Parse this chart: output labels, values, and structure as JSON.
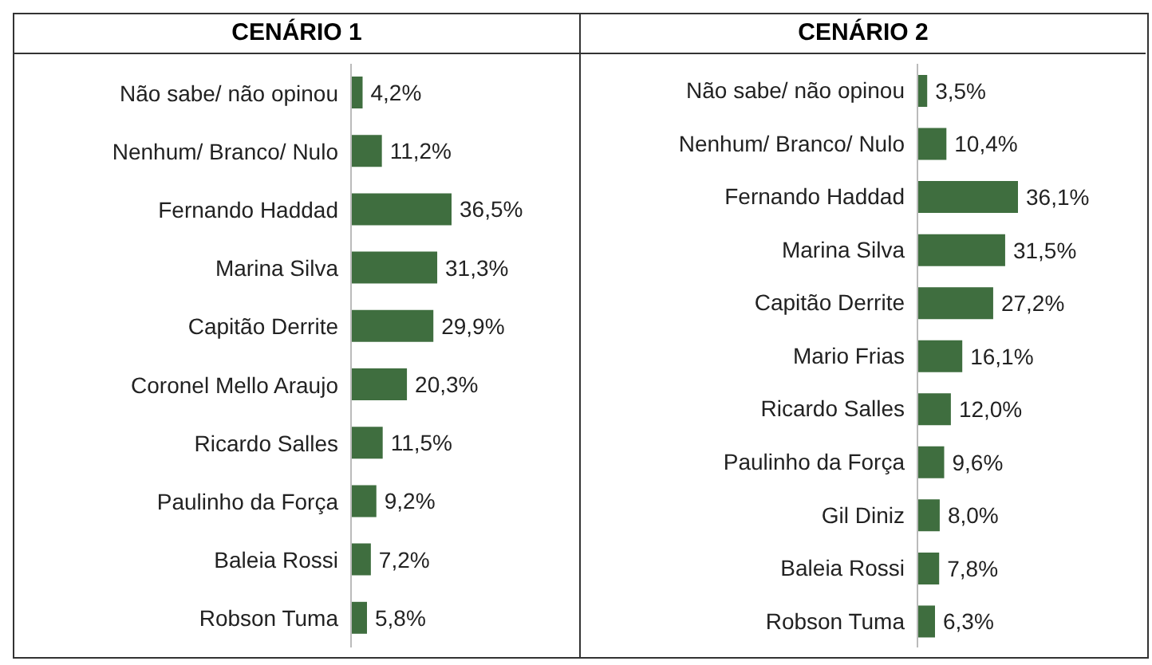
{
  "chart_data": [
    {
      "type": "bar",
      "orientation": "horizontal",
      "title": "CENÁRIO 1",
      "categories": [
        "Não sabe/ não opinou",
        "Nenhum/ Branco/ Nulo",
        "Fernando Haddad",
        "Marina Silva",
        "Capitão Derrite",
        "Coronel Mello Araujo",
        "Ricardo Salles",
        "Paulinho da Força",
        "Baleia Rossi",
        "Robson Tuma"
      ],
      "values": [
        4.2,
        11.2,
        36.5,
        31.3,
        29.9,
        20.3,
        11.5,
        9.2,
        7.2,
        5.8
      ],
      "value_labels": [
        "4,2%",
        "11,2%",
        "36,5%",
        "31,3%",
        "29,9%",
        "20,3%",
        "11,5%",
        "9,2%",
        "7,2%",
        "5,8%"
      ],
      "color": "#3f6e3f",
      "tick_labels": "y"
    },
    {
      "type": "bar",
      "orientation": "horizontal",
      "title": "CENÁRIO 2",
      "categories": [
        "Não sabe/ não opinou",
        "Nenhum/ Branco/ Nulo",
        "Fernando Haddad",
        "Marina Silva",
        "Capitão Derrite",
        "Mario Frias",
        "Ricardo Salles",
        "Paulinho da Força",
        "Gil Diniz",
        "Baleia Rossi",
        "Robson Tuma"
      ],
      "values": [
        3.5,
        10.4,
        36.1,
        31.5,
        27.2,
        16.1,
        12.0,
        9.6,
        8.0,
        7.8,
        6.3
      ],
      "value_labels": [
        "3,5%",
        "10,4%",
        "36,1%",
        "31,5%",
        "27,2%",
        "16,1%",
        "12,0%",
        "9,6%",
        "8,0%",
        "7,8%",
        "6,3%"
      ],
      "color": "#3f6e3f",
      "tick_labels": "y"
    }
  ]
}
